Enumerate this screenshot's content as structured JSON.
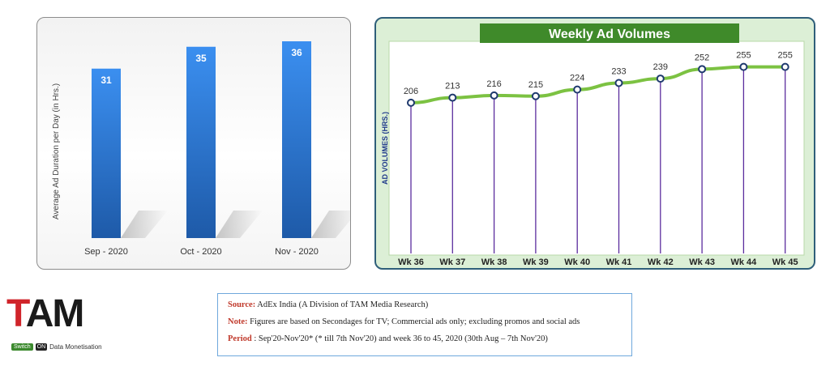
{
  "chart_data": [
    {
      "type": "bar",
      "categories": [
        "Sep - 2020",
        "Oct - 2020",
        "Nov - 2020"
      ],
      "values": [
        31,
        35,
        36
      ],
      "title": "",
      "ylabel": "Average Ad Duration per Day (in Hrs.)",
      "xlabel": "",
      "ylim": [
        0,
        40
      ],
      "grid": false,
      "data_labels": true,
      "colors": {
        "bar_top": "#3b8ff0",
        "bar_bottom": "#1e5aa8"
      }
    },
    {
      "type": "line",
      "title": "Weekly Ad Volumes",
      "categories": [
        "Wk 36",
        "Wk 37",
        "Wk 38",
        "Wk 39",
        "Wk 40",
        "Wk 41",
        "Wk 42",
        "Wk 43",
        "Wk 44",
        "Wk 45"
      ],
      "values": [
        206,
        213,
        216,
        215,
        224,
        233,
        239,
        252,
        255,
        255
      ],
      "ylabel": "AD VOLUMES (HRS.)",
      "xlabel": "",
      "ylim": [
        0,
        290
      ],
      "grid": false,
      "data_labels": true,
      "colors": {
        "line": "#7cc242",
        "drop_lines": "#5b2d9e",
        "title_bg": "#3f8a2a",
        "marker": "#1f3a6e"
      }
    }
  ],
  "logo": {
    "brand": "TAM",
    "switch": "Switch",
    "on": "ON",
    "tagline": "Data Monetisation"
  },
  "notes": {
    "source_label": "Source:",
    "source_text": " AdEx India (A Division of TAM Media Research)",
    "note_label": "Note:",
    "note_text": " Figures are based on Secondages for TV; Commercial ads only; excluding promos and social ads",
    "period_label": "Period",
    "period_text": " : Sep'20-Nov'20* (* till 7th Nov'20) and week 36 to 45, 2020 (30th Aug – 7th Nov'20)"
  }
}
